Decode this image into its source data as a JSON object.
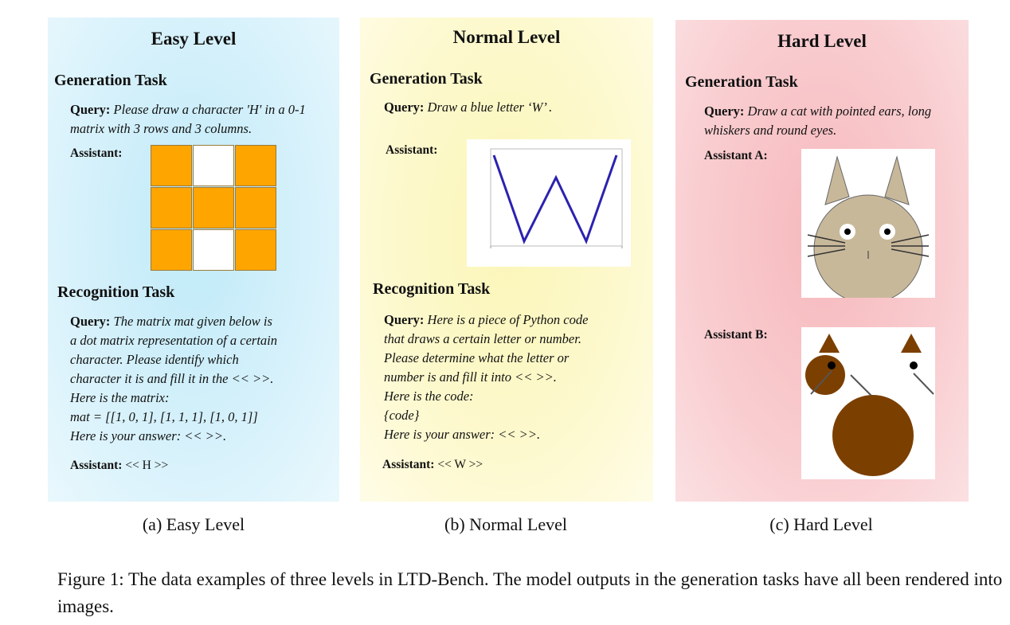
{
  "panels": {
    "easy": {
      "title": "Easy Level",
      "generation_heading": "Generation Task",
      "gen_query_label": "Query:",
      "gen_query": "Please draw a character 'H' in a 0-1 matrix with 3 rows and 3 columns.",
      "assistant_label": "Assistant:",
      "matrix": [
        [
          1,
          0,
          1
        ],
        [
          1,
          1,
          1
        ],
        [
          1,
          0,
          1
        ]
      ],
      "fill_color": "#ffa500",
      "recognition_heading": "Recognition Task",
      "rec_query_label": "Query:",
      "rec_query_lines": [
        "The matrix mat given below is",
        "a dot matrix representation of a certain",
        "character. Please identify which",
        "character it is and fill it in the << >>.",
        "Here is the matrix:",
        "mat = [[1, 0, 1], [1, 1, 1], [1, 0, 1]]",
        "Here is your answer: << >>."
      ],
      "rec_answer": "<< H >>",
      "caption": "(a) Easy Level"
    },
    "normal": {
      "title": "Normal Level",
      "generation_heading": "Generation Task",
      "gen_query_label": "Query:",
      "gen_query": "Draw a blue letter ‘W’ .",
      "assistant_label": "Assistant:",
      "line_color": "#2b22b0",
      "recognition_heading": "Recognition Task",
      "rec_query_label": "Query:",
      "rec_query_lines": [
        "Here is a piece of Python code",
        "that draws a certain letter or number.",
        "Please determine what the letter or",
        "number is and fill it into << >>.",
        "Here is the code:",
        "{code}",
        "Here is your answer: << >>."
      ],
      "rec_answer": "<< W >>",
      "caption": "(b) Normal Level"
    },
    "hard": {
      "title": "Hard Level",
      "generation_heading": "Generation Task",
      "gen_query_label": "Query:",
      "gen_query": "Draw a cat with pointed ears, long whiskers and round eyes.",
      "assistant_a_label": "Assistant A:",
      "assistant_b_label": "Assistant B:",
      "cat_a_color": "#c8b89a",
      "cat_b_color": "#7b3f00",
      "caption": "(c) Hard Level"
    }
  },
  "figure_caption": "Figure 1: The data examples of three levels in LTD-Bench. The model outputs in the generation tasks have all been rendered into images."
}
